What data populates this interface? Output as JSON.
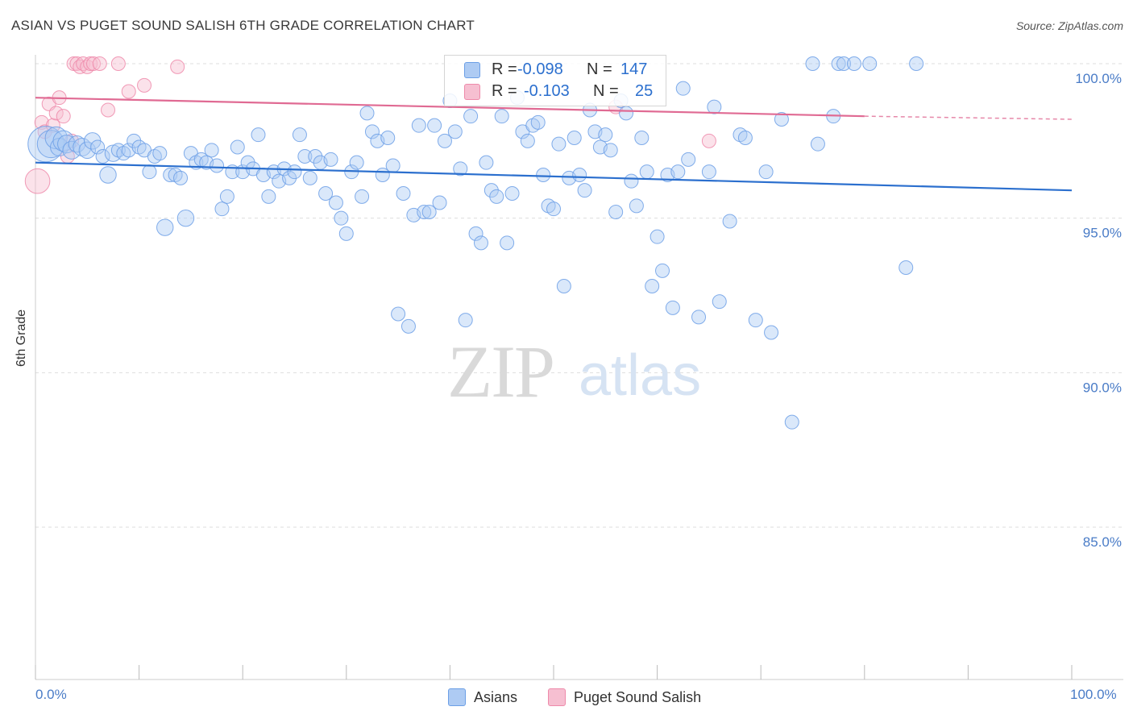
{
  "title": "ASIAN VS PUGET SOUND SALISH 6TH GRADE CORRELATION CHART",
  "source": "Source: ZipAtlas.com",
  "colors": {
    "blue": "#6c9fe6",
    "blue_fill": "#aecbf3",
    "blue_line": "#2b6fce",
    "pink": "#ee8aaa",
    "pink_fill": "#f6bfd1",
    "pink_line": "#e06a93",
    "axis_label": "#4a7cc7",
    "grid": "#dddddd"
  },
  "watermark": {
    "part1": "ZIP",
    "part2": "atlas"
  },
  "legend_top": {
    "rows": [
      {
        "r_label": "R =",
        "r_value": "-0.098",
        "n_label": "N =",
        "n_value": "147"
      },
      {
        "r_label": "R =",
        "r_value": "-0.103",
        "n_label": "N =",
        "n_value": "25"
      }
    ]
  },
  "legend_bottom": {
    "asians": "Asians",
    "puget": "Puget Sound Salish"
  },
  "chart_data": {
    "type": "scatter",
    "title": "ASIAN VS PUGET SOUND SALISH 6TH GRADE CORRELATION CHART",
    "xlabel": "",
    "ylabel": "6th Grade",
    "xlim": [
      0,
      100
    ],
    "ylim": [
      80.5,
      101
    ],
    "x_tick_labels": [
      "0.0%",
      "100.0%"
    ],
    "y_ticks": [
      100,
      95,
      90,
      85
    ],
    "y_tick_labels": [
      "100.0%",
      "95.0%",
      "90.0%",
      "85.0%"
    ],
    "series": [
      {
        "name": "Asians",
        "R": -0.098,
        "N": 147,
        "trend": {
          "x": [
            0,
            100
          ],
          "y": [
            96.8,
            95.9
          ]
        },
        "points": [
          [
            1,
            97.4,
            2.6
          ],
          [
            1.5,
            97.4,
            2
          ],
          [
            2,
            97.6,
            1.6
          ],
          [
            2.3,
            97.3,
            1.3
          ],
          [
            2.7,
            97.5,
            1.5
          ],
          [
            3,
            97.4,
            1.3
          ],
          [
            3.5,
            97.2,
            1.3
          ],
          [
            4,
            97.4,
            1.2
          ],
          [
            4.5,
            97.3,
            1.3
          ],
          [
            5,
            97.2,
            1.2
          ],
          [
            5.5,
            97.5,
            1.2
          ],
          [
            6,
            97.3,
            1
          ],
          [
            6.5,
            97.0,
            1
          ],
          [
            7,
            96.4,
            1.2
          ],
          [
            7.5,
            97.1,
            1.2
          ],
          [
            8,
            97.2,
            1
          ],
          [
            8.5,
            97.1,
            1
          ],
          [
            9,
            97.2,
            1
          ],
          [
            9.5,
            97.5,
            1
          ],
          [
            10,
            97.3,
            1
          ],
          [
            10.5,
            97.2,
            1
          ],
          [
            11,
            96.5,
            1
          ],
          [
            11.5,
            97.0,
            1
          ],
          [
            12,
            97.1,
            1
          ],
          [
            12.5,
            94.7,
            1.2
          ],
          [
            13,
            96.4,
            1
          ],
          [
            13.5,
            96.4,
            1
          ],
          [
            14,
            96.3,
            1
          ],
          [
            14.5,
            95.0,
            1.2
          ],
          [
            15,
            97.1,
            1
          ],
          [
            15.5,
            96.8,
            1
          ],
          [
            16,
            96.9,
            1
          ],
          [
            16.5,
            96.8,
            1
          ],
          [
            17,
            97.2,
            1
          ],
          [
            17.5,
            96.7,
            1
          ],
          [
            18,
            95.3,
            1
          ],
          [
            18.5,
            95.7,
            1
          ],
          [
            19,
            96.5,
            1
          ],
          [
            19.5,
            97.3,
            1
          ],
          [
            20,
            96.5,
            1
          ],
          [
            20.5,
            96.8,
            1
          ],
          [
            21,
            96.6,
            1
          ],
          [
            21.5,
            97.7,
            1
          ],
          [
            22,
            96.4,
            1
          ],
          [
            22.5,
            95.7,
            1
          ],
          [
            23,
            96.5,
            1
          ],
          [
            23.5,
            96.2,
            1
          ],
          [
            24,
            96.6,
            1
          ],
          [
            24.5,
            96.3,
            1
          ],
          [
            25,
            96.5,
            1
          ],
          [
            25.5,
            97.7,
            1
          ],
          [
            26,
            97.0,
            1
          ],
          [
            26.5,
            96.3,
            1
          ],
          [
            27,
            97.0,
            1
          ],
          [
            27.5,
            96.8,
            1
          ],
          [
            28,
            95.8,
            1
          ],
          [
            28.5,
            96.9,
            1
          ],
          [
            29,
            95.5,
            1
          ],
          [
            29.5,
            95.0,
            1
          ],
          [
            30,
            94.5,
            1
          ],
          [
            30.5,
            96.5,
            1
          ],
          [
            31,
            96.8,
            1
          ],
          [
            31.5,
            95.7,
            1
          ],
          [
            32,
            98.4,
            1
          ],
          [
            32.5,
            97.8,
            1
          ],
          [
            33,
            97.5,
            1
          ],
          [
            33.5,
            96.4,
            1
          ],
          [
            34,
            97.6,
            1
          ],
          [
            34.5,
            96.7,
            1
          ],
          [
            35,
            91.9,
            1
          ],
          [
            35.5,
            95.8,
            1
          ],
          [
            36,
            91.5,
            1
          ],
          [
            36.5,
            95.1,
            1
          ],
          [
            37,
            98.0,
            1
          ],
          [
            37.5,
            95.2,
            1
          ],
          [
            38,
            95.2,
            1
          ],
          [
            38.5,
            98.0,
            1
          ],
          [
            39,
            95.5,
            1
          ],
          [
            39.5,
            97.5,
            1
          ],
          [
            40,
            98.8,
            1
          ],
          [
            40.5,
            97.8,
            1
          ],
          [
            41,
            96.6,
            1
          ],
          [
            41.5,
            91.7,
            1
          ],
          [
            42,
            98.3,
            1
          ],
          [
            42.5,
            94.5,
            1
          ],
          [
            43,
            94.2,
            1
          ],
          [
            43.5,
            96.8,
            1
          ],
          [
            44,
            95.9,
            1
          ],
          [
            44.5,
            95.7,
            1
          ],
          [
            45,
            98.3,
            1
          ],
          [
            45.5,
            94.2,
            1
          ],
          [
            46,
            95.8,
            1
          ],
          [
            46.5,
            98.9,
            1
          ],
          [
            47,
            97.8,
            1
          ],
          [
            47.5,
            97.5,
            1
          ],
          [
            48,
            98.0,
            1
          ],
          [
            48.5,
            98.1,
            1
          ],
          [
            49,
            96.4,
            1
          ],
          [
            49.5,
            95.4,
            1
          ],
          [
            50,
            95.3,
            1
          ],
          [
            50.5,
            97.4,
            1
          ],
          [
            51,
            92.8,
            1
          ],
          [
            51.5,
            96.3,
            1
          ],
          [
            52,
            97.6,
            1
          ],
          [
            52.5,
            96.4,
            1
          ],
          [
            53,
            95.9,
            1
          ],
          [
            53.5,
            98.5,
            1
          ],
          [
            54,
            97.8,
            1
          ],
          [
            54.5,
            97.3,
            1
          ],
          [
            55,
            97.7,
            1
          ],
          [
            55.5,
            97.2,
            1
          ],
          [
            56,
            95.2,
            1
          ],
          [
            56.5,
            98.8,
            1
          ],
          [
            57,
            98.4,
            1
          ],
          [
            57.5,
            96.2,
            1
          ],
          [
            58,
            95.4,
            1
          ],
          [
            58.5,
            97.6,
            1
          ],
          [
            59,
            96.5,
            1
          ],
          [
            59.5,
            92.8,
            1
          ],
          [
            60,
            94.4,
            1
          ],
          [
            60.5,
            93.3,
            1
          ],
          [
            61,
            96.4,
            1
          ],
          [
            61.5,
            92.1,
            1
          ],
          [
            62,
            96.5,
            1
          ],
          [
            62.5,
            99.2,
            1
          ],
          [
            63,
            96.9,
            1
          ],
          [
            64,
            91.8,
            1
          ],
          [
            65,
            96.5,
            1
          ],
          [
            65.5,
            98.6,
            1
          ],
          [
            66,
            92.3,
            1
          ],
          [
            67,
            94.9,
            1
          ],
          [
            68,
            97.7,
            1
          ],
          [
            68.5,
            97.6,
            1
          ],
          [
            69.5,
            91.7,
            1
          ],
          [
            70.5,
            96.5,
            1
          ],
          [
            71,
            91.3,
            1
          ],
          [
            72,
            98.2,
            1
          ],
          [
            73,
            88.4,
            1
          ],
          [
            75,
            100.0,
            1
          ],
          [
            75.5,
            97.4,
            1
          ],
          [
            77,
            98.3,
            1
          ],
          [
            77.5,
            100.0,
            1
          ],
          [
            78,
            100.0,
            1
          ],
          [
            79,
            100.0,
            1
          ],
          [
            80.5,
            100.0,
            1
          ],
          [
            84,
            93.4,
            1
          ],
          [
            85,
            100.0,
            1
          ]
        ]
      },
      {
        "name": "Puget Sound Salish",
        "R": -0.103,
        "N": 25,
        "trend": {
          "x": [
            0,
            80
          ],
          "y": [
            98.9,
            98.3
          ]
        },
        "trend_dashed": {
          "x": [
            80,
            100
          ],
          "y": [
            98.3,
            98.2
          ]
        },
        "points": [
          [
            0.2,
            96.2,
            1.8
          ],
          [
            0.6,
            98.1,
            1
          ],
          [
            0.9,
            97.8,
            1
          ],
          [
            1.3,
            98.7,
            1
          ],
          [
            1.7,
            98.0,
            1
          ],
          [
            2.0,
            98.4,
            1
          ],
          [
            2.3,
            98.9,
            1
          ],
          [
            2.7,
            98.3,
            1
          ],
          [
            3.1,
            97.0,
            1
          ],
          [
            3.5,
            97.5,
            1
          ],
          [
            3.7,
            100.0,
            1
          ],
          [
            4.0,
            100.0,
            1
          ],
          [
            4.3,
            99.9,
            1
          ],
          [
            4.6,
            100.0,
            1
          ],
          [
            5.0,
            99.9,
            1
          ],
          [
            5.3,
            100.0,
            1
          ],
          [
            5.6,
            100.0,
            1
          ],
          [
            6.2,
            100.0,
            1
          ],
          [
            7.0,
            98.5,
            1
          ],
          [
            8.0,
            100.0,
            1
          ],
          [
            9.0,
            99.1,
            1
          ],
          [
            10.5,
            99.3,
            1
          ],
          [
            13.7,
            99.9,
            1
          ],
          [
            56.0,
            98.6,
            1
          ],
          [
            65.0,
            97.5,
            1
          ]
        ]
      }
    ]
  }
}
